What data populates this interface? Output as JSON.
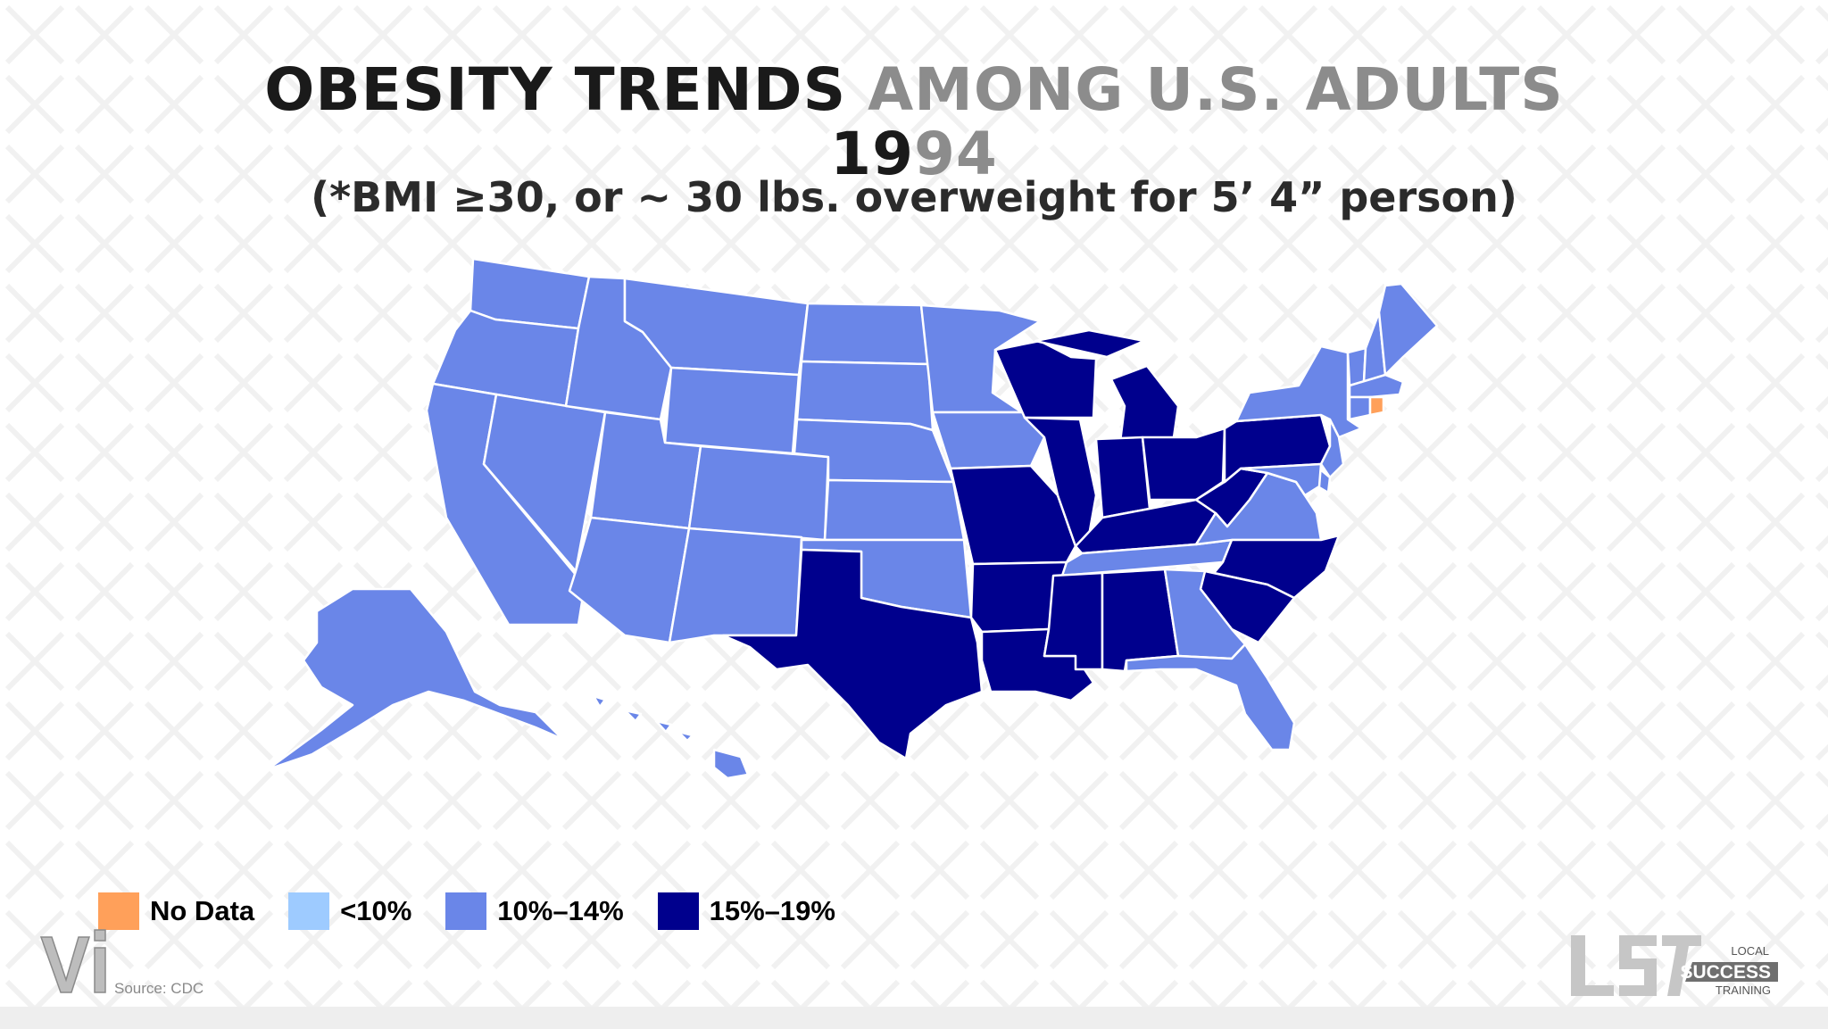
{
  "title": {
    "line1_part1": "OBESITY TRENDS",
    "line1_part2": " AMONG U.S. ADULTS",
    "line2_part1": "19",
    "line2_part2": "94",
    "subtitle": "(*BMI ≥30, or ~ 30 lbs. overweight for 5’ 4” person)"
  },
  "colors": {
    "no_data": "#ffa05a",
    "under_10": "#9ecbff",
    "10_14": "#6a86e8",
    "15_19": "#00008d"
  },
  "legend": [
    {
      "label": "No Data",
      "color": "#ffa05a"
    },
    {
      "label": "<10%",
      "color": "#9ecbff"
    },
    {
      "label": "10%–14%",
      "color": "#6a86e8"
    },
    {
      "label": "15%–19%",
      "color": "#00008d"
    }
  ],
  "source": "Source: CDC",
  "logos": {
    "right_top": "LOCAL",
    "right_main": "SUCCESS",
    "right_bottom": "TRAINING"
  },
  "map_data": {
    "year": 1994,
    "categories": {
      "no_data": [
        "RI"
      ],
      "10_14": [
        "WA",
        "OR",
        "CA",
        "NV",
        "ID",
        "MT",
        "WY",
        "UT",
        "AZ",
        "CO",
        "NM",
        "ND",
        "SD",
        "NE",
        "KS",
        "OK",
        "MN",
        "IA",
        "TN",
        "VA",
        "GA",
        "FL",
        "NY",
        "VT",
        "NH",
        "ME",
        "MA",
        "CT",
        "NJ",
        "DE",
        "MD",
        "AK",
        "HI"
      ],
      "15_19": [
        "TX",
        "LA",
        "AR",
        "MO",
        "MS",
        "AL",
        "IL",
        "WI",
        "MI",
        "IN",
        "OH",
        "KY",
        "WV",
        "PA",
        "NC",
        "SC"
      ]
    }
  }
}
